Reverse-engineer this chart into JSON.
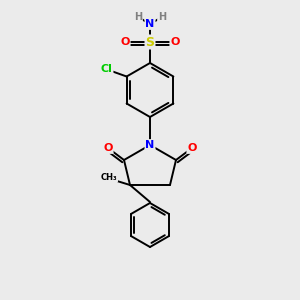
{
  "bg_color": "#ebebeb",
  "atom_colors": {
    "C": "#000000",
    "N": "#0000ff",
    "O": "#ff0000",
    "S": "#cccc00",
    "Cl": "#00cc00",
    "H": "#808080"
  },
  "bond_color": "#000000",
  "lw": 1.4,
  "fs": 8,
  "r1": 27,
  "r2": 22
}
